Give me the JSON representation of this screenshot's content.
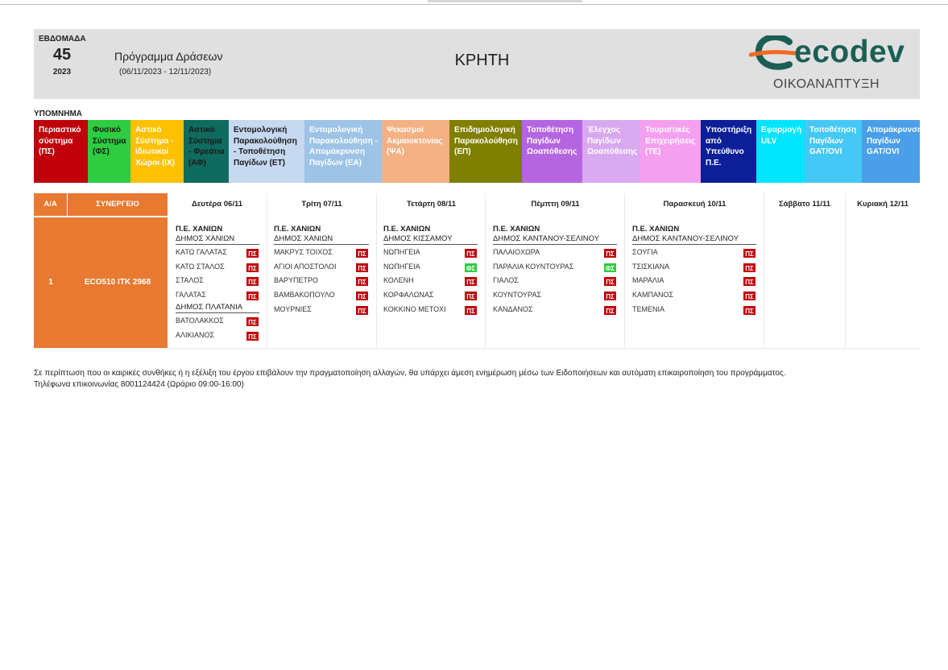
{
  "header": {
    "week_label": "ΕΒΔΟΜΑΔΑ",
    "week_number": "45",
    "year": "2023",
    "program_title": "Πρόγραμμα Δράσεων",
    "program_dates": "(06/11/2023 - 12/11/2023)",
    "region": "ΚΡΗΤΗ",
    "logo_text": "ecodev",
    "logo_subtitle": "ΟΙΚΟΑΝΑΠΤΥΞΗ"
  },
  "legend": {
    "title": "ΥΠΟΜΝΗΜΑ",
    "items": [
      {
        "label": "Περιαστικό σύστημα (ΠΣ)",
        "color": "#c0000a",
        "text_color": "#ffffff"
      },
      {
        "label": "Φυσικό Σύστημα (ΦΣ)",
        "color": "#2ecc40",
        "text_color": "#1a1a1a"
      },
      {
        "label": "Αστικό Σύστημα - Ιδιωτικοί Χώροι (ΙΧ)",
        "color": "#ffc000",
        "text_color": "#ffffff"
      },
      {
        "label": "Αστικό Σύστημα - Φρεάτια (ΑΦ)",
        "color": "#0f6b5e",
        "text_color": "#1a1a1a"
      },
      {
        "label": "Εντομολογική Παρακολούθηση - Τοποθέτηση Παγίδων (ΕΤ)",
        "color": "#c6d9f0",
        "text_color": "#1a1a1a"
      },
      {
        "label": "Εντομολογική Παρακολούθηση - Απομάκρυνση Παγίδων (ΕΑ)",
        "color": "#9dc3e6",
        "text_color": "#ffffff"
      },
      {
        "label": "Ψεκασμοί Ακμαιοκτονίας (ΨΑ)",
        "color": "#f4b183",
        "text_color": "#ffffff"
      },
      {
        "label": "Επιδημιολογική Παρακολούθηση (ΕΠ)",
        "color": "#7f7f00",
        "text_color": "#ffffff"
      },
      {
        "label": "Τοποθέτηση Παγίδων Ωοαπόθεσης",
        "color": "#b565e0",
        "text_color": "#ffffff"
      },
      {
        "label": "Έλεγχος Παγίδων Ωοαπόθεσης",
        "color": "#d9a9f0",
        "text_color": "#ffffff"
      },
      {
        "label": "Τουριστικές Επιχειρήσεις (ΤΕ)",
        "color": "#f5a0ee",
        "text_color": "#ffffff"
      },
      {
        "label": "Υποστήριξη από Υπεύθυνο Π.Ε.",
        "color": "#0c1f99",
        "text_color": "#ffffff"
      },
      {
        "label": "Εφαρμογή ULV",
        "color": "#00e5ff",
        "text_color": "#ffffff"
      },
      {
        "label": "Τοποθέτηση Παγίδων GAT/OVI",
        "color": "#45c8f5",
        "text_color": "#ffffff"
      },
      {
        "label": "Απομάκρυνση Παγίδων GAT/OVI",
        "color": "#4a9fe8",
        "text_color": "#ffffff"
      }
    ]
  },
  "schedule": {
    "headers": {
      "aa": "Α/Α",
      "synergeio": "ΣΥΝΕΡΓΕΙΟ",
      "days": [
        "Δευτέρα 06/11",
        "Τρίτη 07/11",
        "Τετάρτη 08/11",
        "Πέμπτη 09/11",
        "Παρασκευή 10/11",
        "Σάββατο 11/11",
        "Κυριακή 12/11"
      ]
    },
    "row": {
      "aa": "1",
      "synergeio": "ECO510  ΙΤΚ 2968",
      "monday": {
        "pe": "Π.Ε. ΧΑΝΙΩΝ",
        "dimos": "ΔΗΜΟΣ ΧΑΝΙΩΝ",
        "locations": [
          {
            "name": "ΚΑΤΩ ΓΑΛΑΤΑΣ",
            "code": "ΠΣ"
          },
          {
            "name": "ΚΑΤΩ ΣΤΑΛΟΣ",
            "code": "ΠΣ"
          },
          {
            "name": "ΣΤΑΛΟΣ",
            "code": "ΠΣ"
          },
          {
            "name": "ΓΑΛΑΤΑΣ",
            "code": "ΠΣ"
          }
        ],
        "dimos2": "ΔΗΜΟΣ ΠΛΑΤΑΝΙΑ",
        "locations2": [
          {
            "name": "ΒΑΤΟΛΑΚΚΟΣ",
            "code": "ΠΣ"
          },
          {
            "name": "ΑΛΙΚΙΑΝΟΣ",
            "code": "ΠΣ"
          }
        ]
      },
      "tuesday": {
        "pe": "Π.Ε. ΧΑΝΙΩΝ",
        "dimos": "ΔΗΜΟΣ ΧΑΝΙΩΝ",
        "locations": [
          {
            "name": "ΜΑΚΡΥΣ ΤΟΙΧΟΣ",
            "code": "ΠΣ"
          },
          {
            "name": "ΑΓΙΟΙ ΑΠΟΣΤΟΛΟΙ",
            "code": "ΠΣ"
          },
          {
            "name": "ΒΑΡΥΠΕΤΡΟ",
            "code": "ΠΣ"
          },
          {
            "name": "ΒΑΜΒΑΚΟΠΟΥΛΟ",
            "code": "ΠΣ"
          },
          {
            "name": "ΜΟΥΡΝΙΕΣ",
            "code": "ΠΣ"
          }
        ]
      },
      "wednesday": {
        "pe": "Π.Ε. ΧΑΝΙΩΝ",
        "dimos": "ΔΗΜΟΣ ΚΙΣΣΑΜΟΥ",
        "locations": [
          {
            "name": "ΝΩΠΗΓΕΙΑ",
            "code": "ΠΣ"
          },
          {
            "name": "ΝΩΠΗΓΕΙΑ",
            "code": "ΦΣ"
          },
          {
            "name": "ΚΟΛΕΝΗ",
            "code": "ΠΣ"
          },
          {
            "name": "ΚΟΡΦΑΛΩΝΑΣ",
            "code": "ΠΣ"
          },
          {
            "name": "ΚΟΚΚΙΝΟ ΜΕΤΟΧΙ",
            "code": "ΠΣ"
          }
        ]
      },
      "thursday": {
        "pe": "Π.Ε. ΧΑΝΙΩΝ",
        "dimos": "ΔΗΜΟΣ ΚΑΝΤΑΝΟΥ-ΣΕΛΙΝΟΥ",
        "locations": [
          {
            "name": "ΠΑΛΑΙΟΧΩΡΑ",
            "code": "ΠΣ"
          },
          {
            "name": "ΠΑΡΑΛΙΑ ΚΟΥΝΤΟΥΡΑΣ",
            "code": "ΦΣ"
          },
          {
            "name": "ΓΙΑΛΟΣ",
            "code": "ΠΣ"
          },
          {
            "name": "ΚΟΥΝΤΟΥΡΑΣ",
            "code": "ΠΣ"
          },
          {
            "name": "ΚΑΝΔΑΝΟΣ",
            "code": "ΠΣ"
          }
        ]
      },
      "friday": {
        "pe": "Π.Ε. ΧΑΝΙΩΝ",
        "dimos": "ΔΗΜΟΣ ΚΑΝΤΑΝΟΥ-ΣΕΛΙΝΟΥ",
        "locations": [
          {
            "name": "ΣΟΥΓΙΑ",
            "code": "ΠΣ"
          },
          {
            "name": "ΤΣΙΣΚΙΑΝΑ",
            "code": "ΠΣ"
          },
          {
            "name": "ΜΑΡΑΛΙΑ",
            "code": "ΠΣ"
          },
          {
            "name": "ΚΑΜΠΑΝΟΣ",
            "code": "ΠΣ"
          },
          {
            "name": "ΤΕΜΕΝΙΑ",
            "code": "ΠΣ"
          }
        ]
      }
    }
  },
  "footer": {
    "note": "Σε περίπτωση που οι καιρικές συνθήκες ή η εξέλιξη του έργου επιβάλουν την πραγματοποίηση αλλαγών, θα υπάρχει άμεση ενημέρωση μέσω των Ειδοποιήσεων και αυτόματη επικαιροποίηση του προγράμματος.",
    "phone": "Τηλέφωνα επικοινωνίας 8001124424 (Ωράριο 09:00-16:00)"
  },
  "colors": {
    "header_bg": "#e0e0e0",
    "orange": "#e87930",
    "badge_ps": "#c0000a",
    "badge_fs": "#2ecc40",
    "logo_green": "#1b5e54",
    "logo_orange": "#f26b21"
  }
}
